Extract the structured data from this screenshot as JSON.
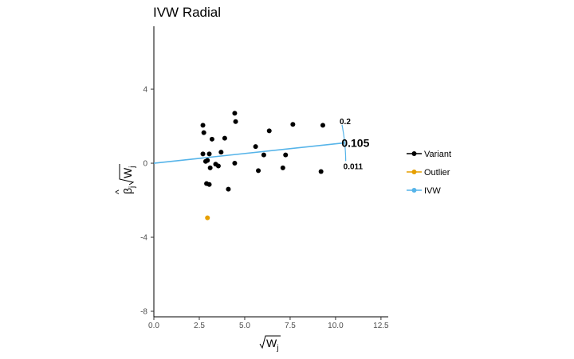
{
  "chart_data": {
    "type": "scatter",
    "title": "IVW Radial",
    "xlabel": "√W_j",
    "ylabel": "β̂_j √W_j",
    "xlim": [
      0,
      12.9
    ],
    "ylim": [
      -8.3,
      7.4
    ],
    "x_ticks": [
      0,
      2.5,
      5,
      7.5,
      10,
      12.5
    ],
    "x_tick_labels": [
      "0.0",
      "2.5",
      "5.0",
      "7.5",
      "10.0",
      "12.5"
    ],
    "y_ticks": [
      4,
      0,
      -4,
      -8
    ],
    "y_tick_labels": [
      "4",
      "0",
      "-4",
      "-8"
    ],
    "grid": false,
    "legend_position": "right",
    "colors": {
      "Variant": "#000000",
      "Outlier": "#E69F00",
      "IVW": "#56B4E9"
    },
    "series": [
      {
        "name": "Variant",
        "points": [
          [
            2.7,
            2.05
          ],
          [
            2.75,
            1.65
          ],
          [
            2.7,
            0.5
          ],
          [
            2.95,
            0.15
          ],
          [
            2.85,
            0.1
          ],
          [
            3.05,
            0.5
          ],
          [
            3.1,
            -0.25
          ],
          [
            3.2,
            1.3
          ],
          [
            3.4,
            -0.05
          ],
          [
            3.55,
            -0.15
          ],
          [
            3.7,
            0.6
          ],
          [
            3.9,
            1.35
          ],
          [
            2.9,
            -1.1
          ],
          [
            3.05,
            -1.15
          ],
          [
            4.1,
            -1.4
          ],
          [
            4.45,
            2.7
          ],
          [
            4.5,
            2.25
          ],
          [
            4.45,
            0.0
          ],
          [
            5.6,
            0.9
          ],
          [
            5.75,
            -0.4
          ],
          [
            6.05,
            0.45
          ],
          [
            6.35,
            1.75
          ],
          [
            7.1,
            -0.25
          ],
          [
            7.25,
            0.45
          ],
          [
            7.65,
            2.1
          ],
          [
            9.2,
            -0.45
          ],
          [
            9.3,
            2.05
          ]
        ]
      },
      {
        "name": "Outlier",
        "points": [
          [
            2.95,
            -2.95
          ]
        ]
      },
      {
        "name": "IVW",
        "line_from": [
          0,
          0
        ],
        "slope": 0.105
      }
    ],
    "annotations": {
      "arc_radius": 10.56,
      "upper_label": "0.2",
      "upper_slope": 0.2,
      "estimate_label": "0.105",
      "estimate_slope": 0.105,
      "lower_label": "0.011",
      "lower_slope": 0.011
    }
  }
}
